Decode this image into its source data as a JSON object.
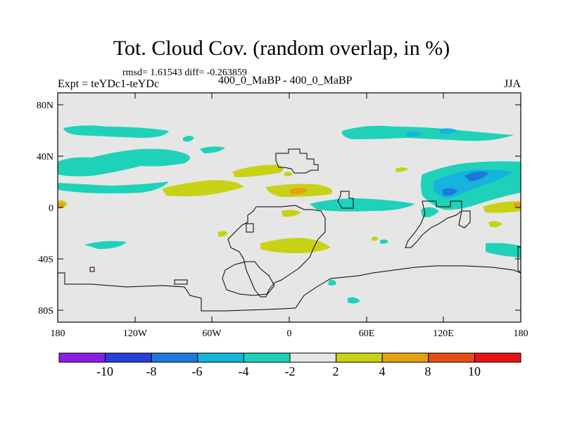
{
  "title": "Tot. Cloud Cov. (random overlap, in %)",
  "stats": "rmsd= 1.61543 diff= -0.263859",
  "experiment": "Expt = teYDc1-teYDc",
  "difference_label": "400_0_MaBP - 400_0_MaBP",
  "season": "JJA",
  "lat_ticks": [
    "80N",
    "40N",
    "0",
    "40S",
    "80S"
  ],
  "lon_ticks": [
    "180",
    "120W",
    "60W",
    "0",
    "60E",
    "120E",
    "180"
  ],
  "colorbar": {
    "labels": [
      "-10",
      "-8",
      "-6",
      "-4",
      "-2",
      "2",
      "4",
      "8",
      "10"
    ],
    "colors": [
      "#8a1ee6",
      "#2a3ed8",
      "#1e78dc",
      "#14b4dc",
      "#1ed2b9",
      "#e6e6e6",
      "#c8d214",
      "#e6a014",
      "#e65014",
      "#e61414"
    ]
  },
  "map_colors": {
    "background": "#e6e6e6",
    "coastline": "#000000"
  }
}
